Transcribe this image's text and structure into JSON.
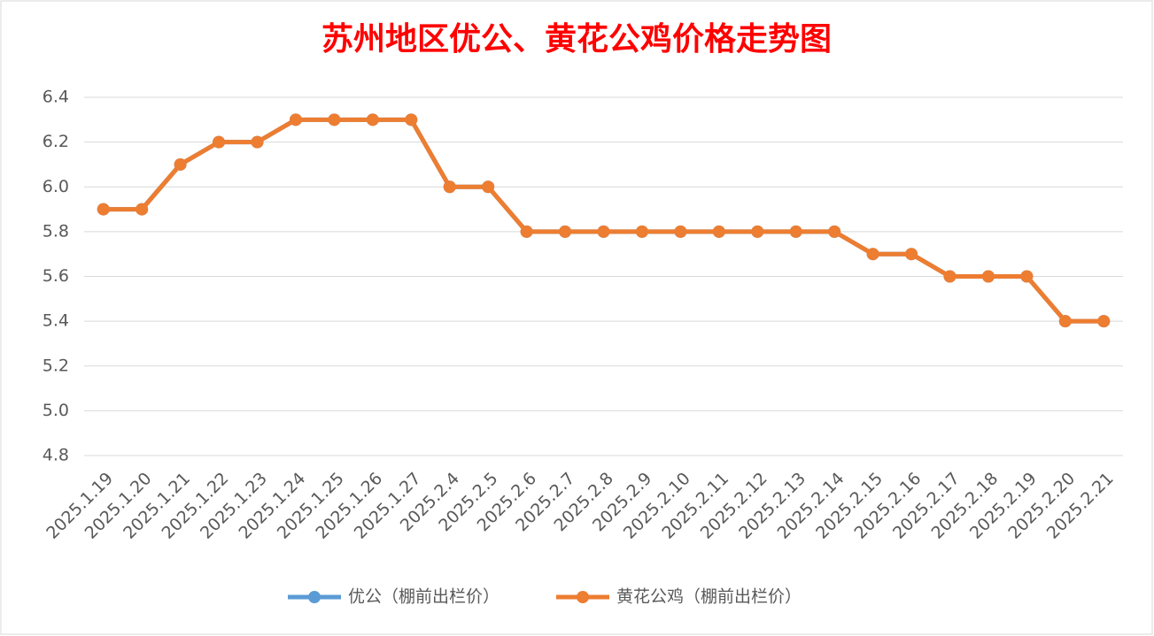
{
  "chart_data": {
    "type": "line",
    "title": "苏州地区优公、黄花公鸡价格走势图",
    "categories": [
      "2025.1.19",
      "2025.1.20",
      "2025.1.21",
      "2025.1.22",
      "2025.1.23",
      "2025.1.24",
      "2025.1.25",
      "2025.1.26",
      "2025.1.27",
      "2025.2.4",
      "2025.2.5",
      "2025.2.6",
      "2025.2.7",
      "2025.2.8",
      "2025.2.9",
      "2025.2.10",
      "2025.2.11",
      "2025.2.12",
      "2025.2.13",
      "2025.2.14",
      "2025.2.15",
      "2025.2.16",
      "2025.2.17",
      "2025.2.18",
      "2025.2.19",
      "2025.2.20",
      "2025.2.21"
    ],
    "series": [
      {
        "name": "优公（棚前出栏价）",
        "color": "#5b9bd5",
        "values": [
          5.9,
          5.9,
          6.1,
          6.2,
          6.2,
          6.3,
          6.3,
          6.3,
          6.3,
          6.0,
          6.0,
          5.8,
          5.8,
          5.8,
          5.8,
          5.8,
          5.8,
          5.8,
          5.8,
          5.8,
          5.7,
          5.7,
          5.6,
          5.6,
          5.6,
          5.4,
          5.4
        ]
      },
      {
        "name": "黄花公鸡（棚前出栏价）",
        "color": "#ed7d31",
        "values": [
          5.9,
          5.9,
          6.1,
          6.2,
          6.2,
          6.3,
          6.3,
          6.3,
          6.3,
          6.0,
          6.0,
          5.8,
          5.8,
          5.8,
          5.8,
          5.8,
          5.8,
          5.8,
          5.8,
          5.8,
          5.7,
          5.7,
          5.6,
          5.6,
          5.6,
          5.4,
          5.4
        ]
      }
    ],
    "ylim": [
      4.8,
      6.4
    ],
    "yticks": [
      4.8,
      {
        "value": 5,
        "label": "5.0"
      },
      5.2,
      5.4,
      5.6,
      5.8,
      {
        "value": 6,
        "label": "6.0"
      },
      6.2,
      6.4
    ],
    "grid": true,
    "legend": "bottom"
  }
}
